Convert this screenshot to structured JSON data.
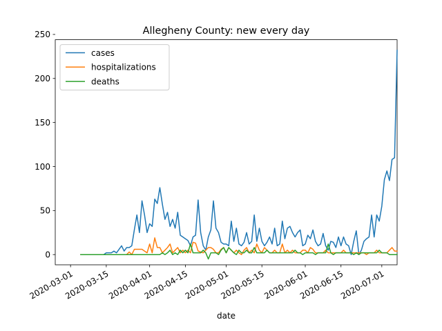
{
  "chart_data": {
    "type": "line",
    "title": "Allegheny County: new every day",
    "xlabel": "date",
    "ylabel": "",
    "x_start": "2020-03-05",
    "x_end": "2020-07-02",
    "xlim": [
      "2020-02-24",
      "2020-07-07"
    ],
    "ylim": [
      -11.6,
      244
    ],
    "grid": false,
    "legend_position": "top-left",
    "x_ticks": [
      "2020-03-01",
      "2020-03-15",
      "2020-04-01",
      "2020-04-15",
      "2020-05-01",
      "2020-05-15",
      "2020-06-01",
      "2020-06-15",
      "2020-07-01"
    ],
    "y_ticks": [
      0,
      50,
      100,
      150,
      200,
      250
    ],
    "series": [
      {
        "name": "cases",
        "color": "#1f77b4",
        "values": [
          0,
          0,
          0,
          0,
          0,
          0,
          0,
          0,
          0,
          0,
          2,
          2,
          2,
          4,
          2,
          6,
          10,
          4,
          8,
          8,
          10,
          28,
          45,
          25,
          61,
          45,
          25,
          35,
          32,
          63,
          58,
          76,
          57,
          40,
          48,
          32,
          40,
          30,
          48,
          22,
          20,
          18,
          16,
          10,
          20,
          22,
          62,
          25,
          10,
          5,
          20,
          28,
          61,
          30,
          25,
          14,
          12,
          12,
          10,
          38,
          15,
          30,
          12,
          10,
          14,
          25,
          12,
          15,
          45,
          15,
          30,
          15,
          10,
          14,
          20,
          12,
          30,
          10,
          12,
          38,
          18,
          30,
          32,
          25,
          20,
          25,
          28,
          10,
          12,
          22,
          18,
          28,
          15,
          10,
          12,
          24,
          10,
          5,
          15,
          14,
          8,
          20,
          10,
          20,
          12,
          10,
          0,
          15,
          27,
          0,
          5,
          15,
          18,
          20,
          45,
          20,
          45,
          38,
          55,
          85,
          95,
          84,
          108,
          110,
          232
        ]
      },
      {
        "name": "hospitalizations",
        "color": "#ff7f0e",
        "values": [
          0,
          0,
          0,
          0,
          0,
          0,
          0,
          0,
          0,
          0,
          0,
          0,
          0,
          0,
          0,
          0,
          0,
          0,
          0,
          3,
          0,
          6,
          6,
          6,
          6,
          4,
          2,
          12,
          2,
          19,
          8,
          8,
          2,
          5,
          8,
          12,
          2,
          5,
          8,
          2,
          5,
          2,
          5,
          2,
          14,
          13,
          4,
          3,
          2,
          5,
          8,
          8,
          6,
          2,
          2,
          6,
          8,
          2,
          8,
          5,
          2,
          5,
          2,
          0,
          5,
          8,
          2,
          5,
          2,
          12,
          5,
          2,
          8,
          5,
          2,
          2,
          5,
          2,
          2,
          12,
          2,
          5,
          2,
          5,
          2,
          2,
          2,
          5,
          5,
          2,
          8,
          6,
          2,
          2,
          2,
          2,
          5,
          2,
          2,
          2,
          2,
          2,
          2,
          5,
          2,
          2,
          2,
          2,
          2,
          2,
          2,
          2,
          0,
          2,
          2,
          2,
          5,
          2,
          2,
          2,
          2,
          5,
          8,
          4,
          4
        ]
      },
      {
        "name": "deaths",
        "color": "#2ca02c",
        "values": [
          0,
          0,
          0,
          0,
          0,
          0,
          0,
          0,
          0,
          0,
          0,
          0,
          0,
          0,
          0,
          0,
          0,
          0,
          0,
          0,
          0,
          0,
          0,
          0,
          0,
          0,
          0,
          0,
          0,
          0,
          0,
          0,
          2,
          0,
          2,
          5,
          0,
          2,
          0,
          5,
          2,
          5,
          2,
          12,
          2,
          2,
          2,
          2,
          5,
          2,
          -5,
          2,
          2,
          2,
          0,
          5,
          8,
          2,
          8,
          5,
          2,
          0,
          5,
          2,
          2,
          5,
          2,
          2,
          8,
          2,
          2,
          2,
          2,
          5,
          2,
          2,
          2,
          2,
          2,
          2,
          2,
          2,
          2,
          2,
          5,
          2,
          2,
          0,
          2,
          2,
          2,
          2,
          0,
          2,
          2,
          2,
          2,
          12,
          2,
          0,
          2,
          2,
          2,
          2,
          2,
          2,
          2,
          0,
          2,
          0,
          2,
          2,
          2,
          2,
          2,
          2,
          2,
          5,
          2,
          2,
          2,
          0,
          0,
          0,
          0
        ]
      }
    ]
  }
}
